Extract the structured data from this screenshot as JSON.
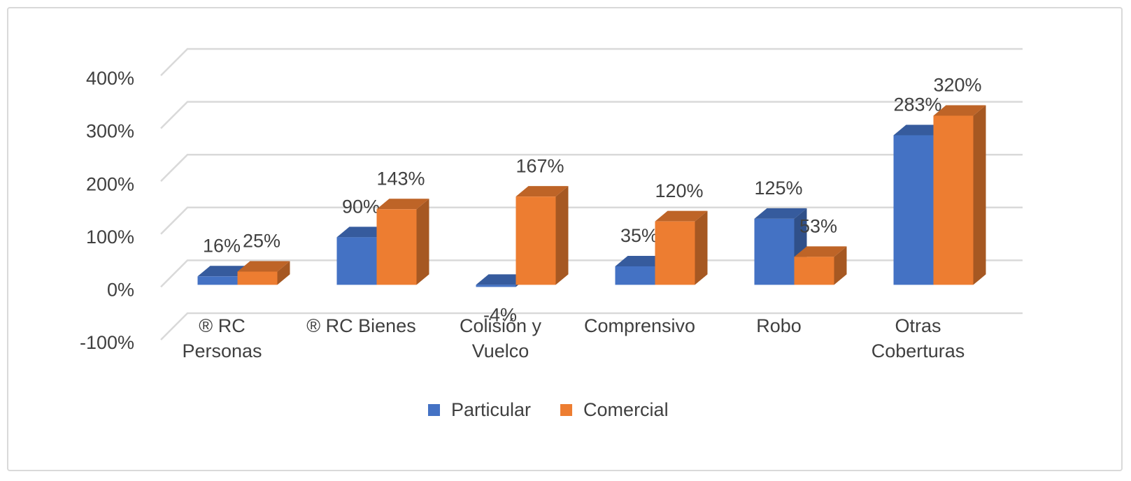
{
  "chart_data": {
    "type": "bar3d",
    "categories": [
      "® RC Personas",
      "® RC Bienes",
      "Colisión y Vuelco",
      "Comprensivo",
      "Robo",
      "Otras Coberturas"
    ],
    "series": [
      {
        "name": "Particular",
        "color": "#4472c4",
        "values": [
          16,
          90,
          -4,
          35,
          125,
          283
        ],
        "value_labels": [
          "16%",
          "90%",
          "-4%",
          "35%",
          "125%",
          "283%"
        ]
      },
      {
        "name": "Comercial",
        "color": "#ed7d31",
        "values": [
          25,
          143,
          167,
          120,
          53,
          320
        ],
        "value_labels": [
          "25%",
          "143%",
          "167%",
          "120%",
          "53%",
          "320%"
        ]
      }
    ],
    "ylim": [
      -100,
      400
    ],
    "yticks": [
      {
        "value": -100,
        "label": "-100%"
      },
      {
        "value": 0,
        "label": "0%"
      },
      {
        "value": 100,
        "label": "100%"
      },
      {
        "value": 200,
        "label": "200%"
      },
      {
        "value": 300,
        "label": "300%"
      },
      {
        "value": 400,
        "label": "400%"
      }
    ],
    "grid": true,
    "legend": "bottom"
  }
}
